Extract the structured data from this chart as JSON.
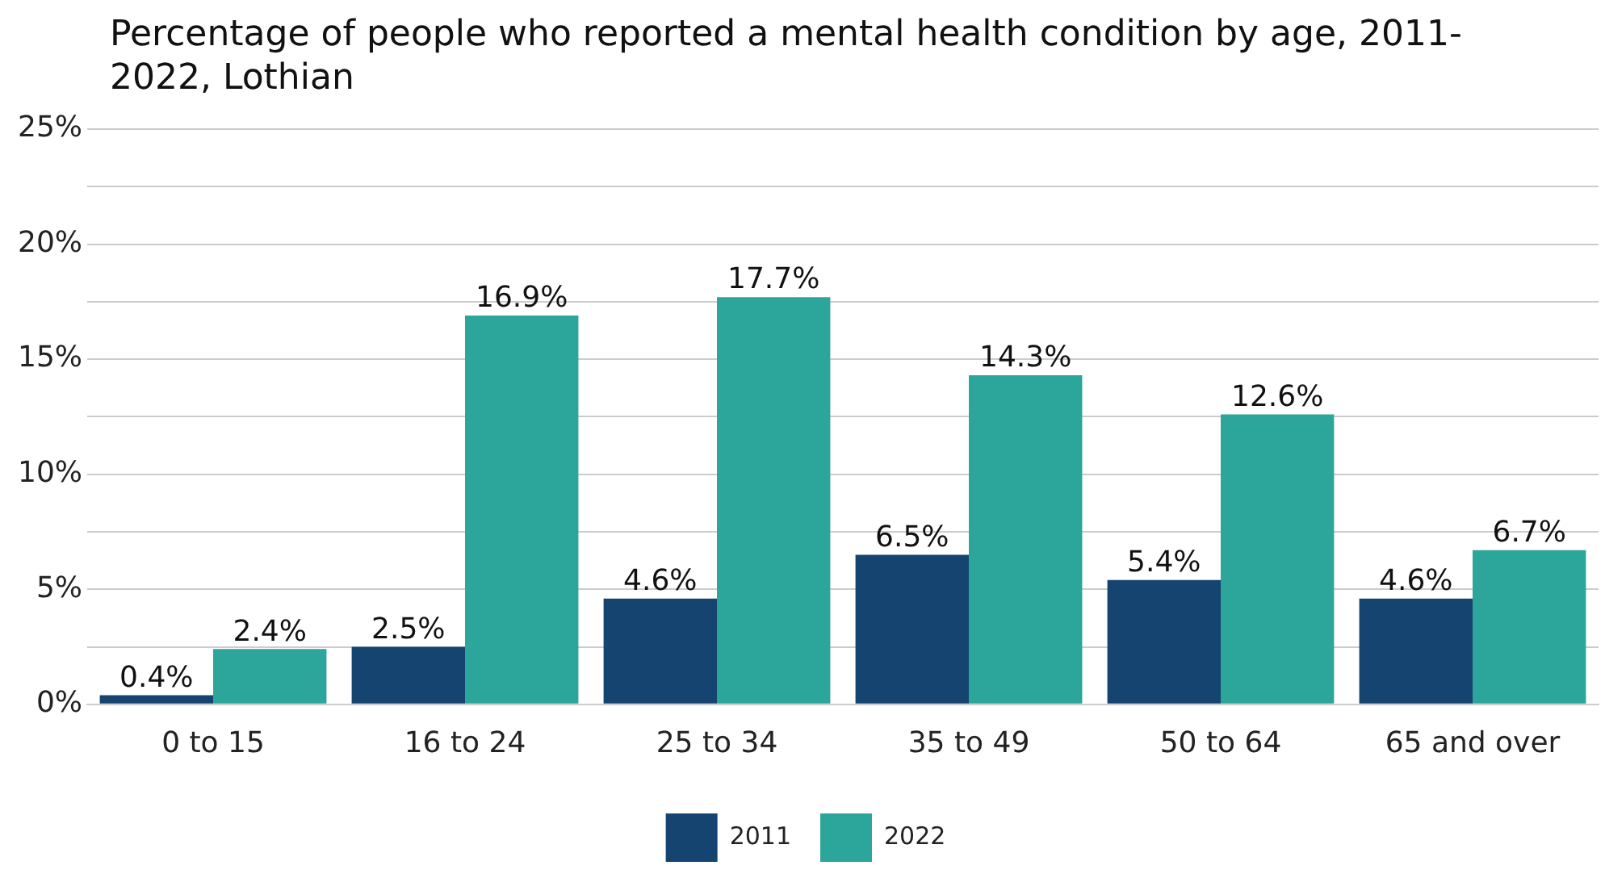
{
  "chart_data": {
    "type": "bar",
    "title": "Percentage of people who reported a mental health condition by age, 2011-2022, Lothian",
    "categories": [
      "0 to 15",
      "16 to 24",
      "25 to 34",
      "35 to 49",
      "50 to 64",
      "65 and over"
    ],
    "series": [
      {
        "name": "2011",
        "color": "#154470",
        "values": [
          0.4,
          2.5,
          4.6,
          6.5,
          5.4,
          4.6
        ],
        "value_labels": [
          "0.4%",
          "2.5%",
          "4.6%",
          "6.5%",
          "5.4%",
          "4.6%"
        ]
      },
      {
        "name": "2022",
        "color": "#2ca59a",
        "values": [
          2.4,
          16.9,
          17.7,
          14.3,
          12.6,
          6.7
        ],
        "value_labels": [
          "2.4%",
          "16.9%",
          "17.7%",
          "14.3%",
          "12.6%",
          "6.7%"
        ]
      }
    ],
    "ylim": [
      0,
      25
    ],
    "yticks": [
      {
        "value": 0,
        "label": "0%"
      },
      {
        "value": 2.5,
        "label": null
      },
      {
        "value": 5,
        "label": "5%"
      },
      {
        "value": 7.5,
        "label": null
      },
      {
        "value": 10,
        "label": "10%"
      },
      {
        "value": 12.5,
        "label": null
      },
      {
        "value": 15,
        "label": "15%"
      },
      {
        "value": 17.5,
        "label": null
      },
      {
        "value": 20,
        "label": "20%"
      },
      {
        "value": 22.5,
        "label": null
      },
      {
        "value": 25,
        "label": "25%"
      }
    ],
    "grid": "y",
    "legend": "bottom"
  }
}
